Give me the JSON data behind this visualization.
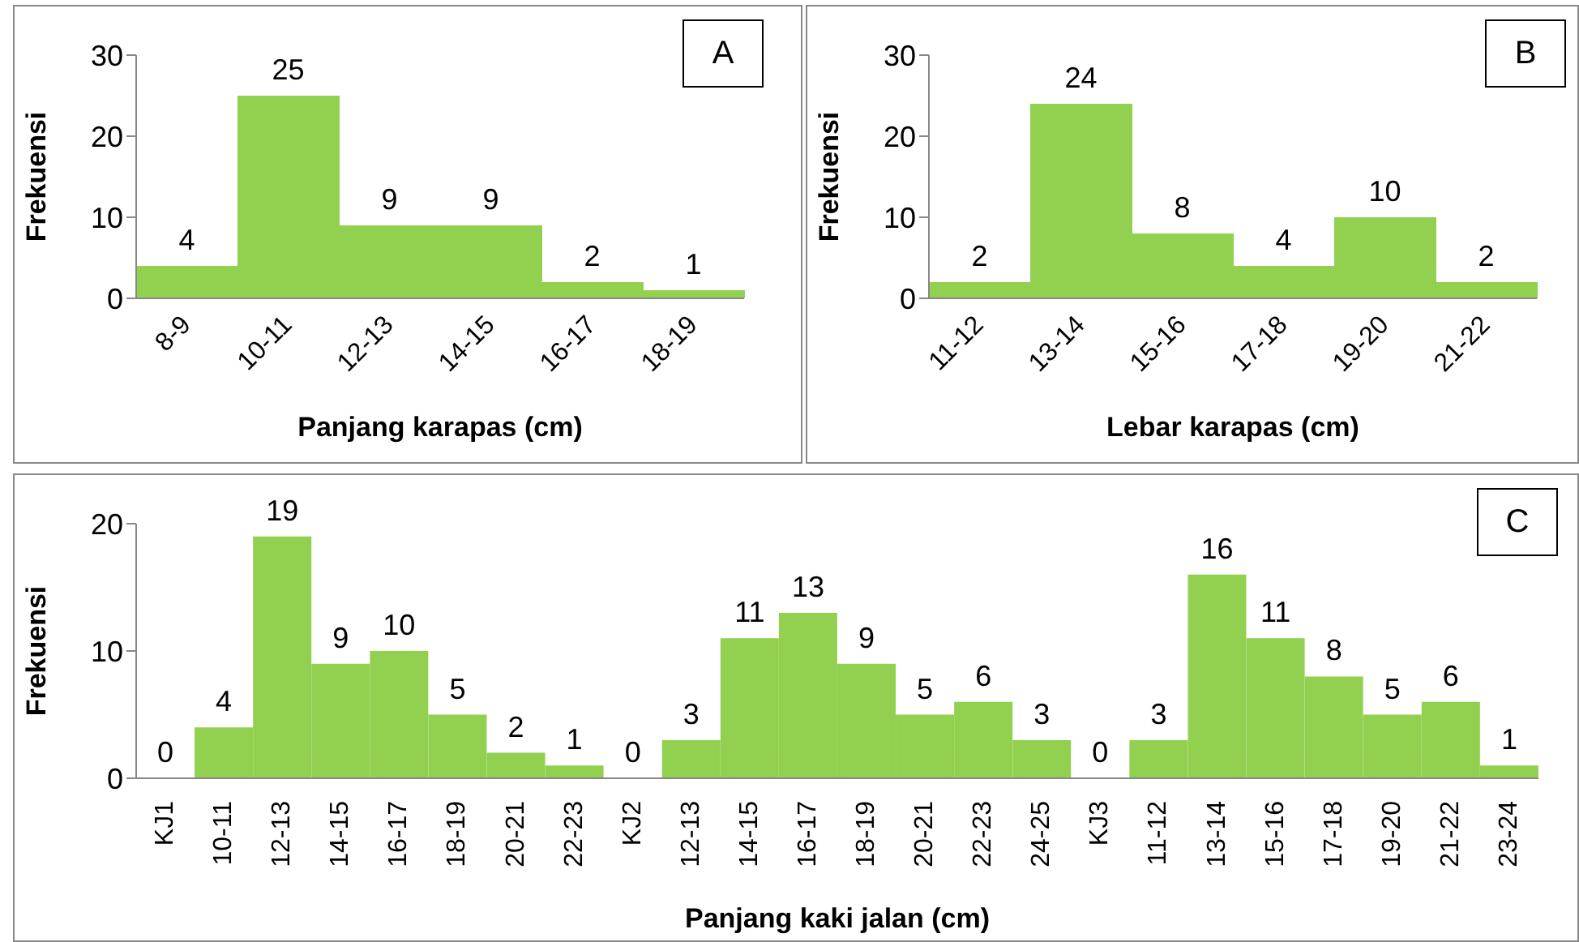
{
  "chart_data": [
    {
      "type": "bar",
      "categories": [
        "8-9",
        "10-11",
        "12-13",
        "14-15",
        "16-17",
        "18-19"
      ],
      "values": [
        4,
        25,
        9,
        9,
        2,
        1
      ],
      "color": "#92d050",
      "ylim": [
        0,
        30
      ],
      "yticks": [
        0,
        10,
        20,
        30
      ],
      "data_labels": true,
      "xlabel": "Panjang karapas (cm)",
      "ylabel": "Frekuensi",
      "annotations": [
        "A"
      ]
    },
    {
      "type": "bar",
      "categories": [
        "11-12",
        "13-14",
        "15-16",
        "17-18",
        "19-20",
        "21-22"
      ],
      "values": [
        2,
        24,
        8,
        4,
        10,
        2
      ],
      "color": "#92d050",
      "ylim": [
        0,
        30
      ],
      "yticks": [
        0,
        10,
        20,
        30
      ],
      "data_labels": true,
      "xlabel": "Lebar karapas (cm)",
      "ylabel": "Frekuensi",
      "annotations": [
        "B"
      ]
    },
    {
      "type": "bar",
      "categories": [
        "KJ1",
        "10-11",
        "12-13",
        "14-15",
        "16-17",
        "18-19",
        "20-21",
        "22-23",
        "KJ2",
        "12-13",
        "14-15",
        "16-17",
        "18-19",
        "20-21",
        "22-23",
        "24-25",
        "KJ3",
        "11-12",
        "13-14",
        "15-16",
        "17-18",
        "19-20",
        "21-22",
        "23-24"
      ],
      "values": [
        0,
        4,
        19,
        9,
        10,
        5,
        2,
        1,
        0,
        3,
        11,
        13,
        9,
        5,
        6,
        3,
        0,
        3,
        16,
        11,
        8,
        5,
        6,
        1
      ],
      "color": "#92d050",
      "ylim": [
        0,
        20
      ],
      "yticks": [
        0,
        10,
        20
      ],
      "data_labels": true,
      "xlabel": "Panjang kaki jalan (cm)",
      "ylabel": "Frekuensi",
      "annotations": [
        "C"
      ]
    }
  ]
}
